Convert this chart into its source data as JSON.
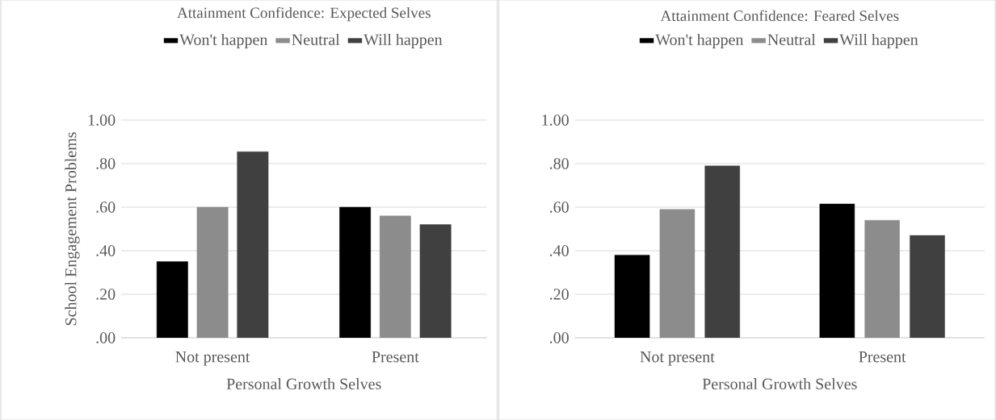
{
  "chart_data": [
    {
      "type": "bar",
      "title": "Attainment Confidence: Expected Selves",
      "xlabel": "Personal Growth Selves",
      "ylabel": "School Engagement Problems",
      "categories": [
        "Not present",
        "Present"
      ],
      "series": [
        {
          "name": "Won't happen",
          "color": "#000000",
          "values": [
            0.35,
            0.6
          ]
        },
        {
          "name": "Neutral",
          "color": "#8c8c8c",
          "values": [
            0.6,
            0.56
          ]
        },
        {
          "name": "Will happen",
          "color": "#404040",
          "values": [
            0.855,
            0.52
          ]
        }
      ],
      "ylim": [
        0,
        1
      ],
      "yticks": [
        {
          "value": 0,
          "label": ".00"
        },
        {
          "value": 0.2,
          "label": ".20"
        },
        {
          "value": 0.4,
          "label": ".40"
        },
        {
          "value": 0.6,
          "label": ".60"
        },
        {
          "value": 0.8,
          "label": ".80"
        },
        {
          "value": 1,
          "label": "1.00"
        }
      ],
      "grid": "y",
      "legend": "top"
    },
    {
      "type": "bar",
      "title": "Attainment Confidence: Feared Selves",
      "xlabel": "Personal Growth Selves",
      "categories": [
        "Not present",
        "Present"
      ],
      "series": [
        {
          "name": "Won't happen",
          "color": "#000000",
          "values": [
            0.38,
            0.615
          ]
        },
        {
          "name": "Neutral",
          "color": "#8c8c8c",
          "values": [
            0.59,
            0.54
          ]
        },
        {
          "name": "Will happen",
          "color": "#404040",
          "values": [
            0.79,
            0.47
          ]
        }
      ],
      "ylim": [
        0,
        1
      ],
      "yticks": [
        {
          "value": 0,
          "label": ".00"
        },
        {
          "value": 0.2,
          "label": ".20"
        },
        {
          "value": 0.4,
          "label": ".40"
        },
        {
          "value": 0.6,
          "label": ".60"
        },
        {
          "value": 0.8,
          "label": ".80"
        },
        {
          "value": 1,
          "label": "1.00"
        }
      ],
      "grid": "y",
      "legend": "top"
    }
  ]
}
